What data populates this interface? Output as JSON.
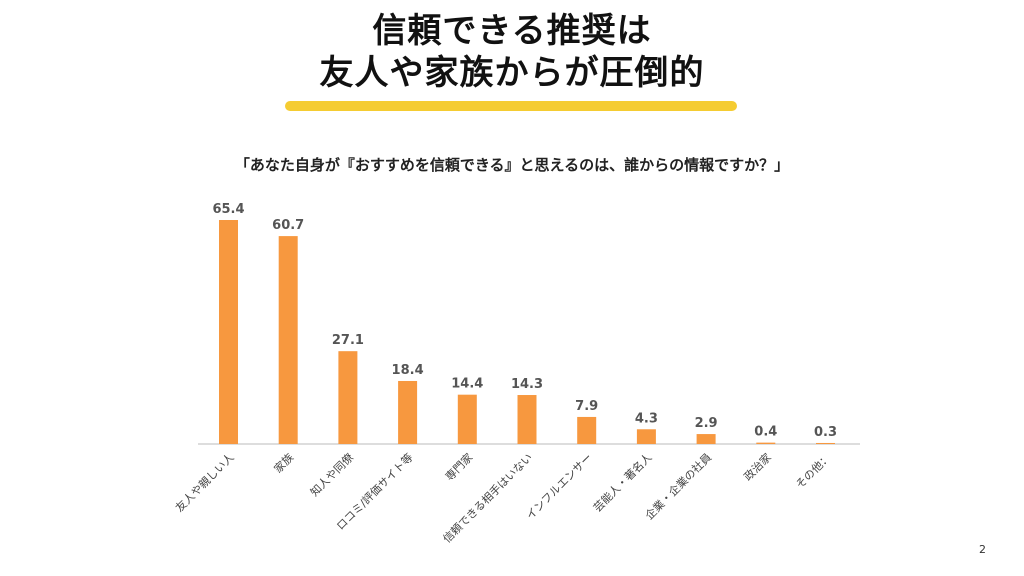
{
  "title": {
    "line1": "信頼できる推奨は",
    "line2": "友人や家族からが圧倒的"
  },
  "question": "「あなた自身が『おすすめを信頼できる』と思えるのは、誰からの情報ですか？」",
  "page_number": "2",
  "colors": {
    "bar": "#F7983F",
    "underline": "#F5CC32",
    "axis": "#BBBBBB",
    "value_label": "#555555",
    "category_label": "#444444"
  },
  "chart_data": {
    "type": "bar",
    "categories": [
      "友人や親しい人",
      "家族",
      "知人や同僚",
      "ロコミ/評価サイト等",
      "専門家",
      "信頼できる相手はいない",
      "インフルエンサー",
      "芸能人・著名人",
      "企業・企業の社員",
      "政治家",
      "その他："
    ],
    "values": [
      65.4,
      60.7,
      27.1,
      18.4,
      14.4,
      14.3,
      7.9,
      4.3,
      2.9,
      0.4,
      0.3
    ],
    "ylim": [
      0,
      70
    ],
    "grid": false,
    "value_labels": true
  }
}
